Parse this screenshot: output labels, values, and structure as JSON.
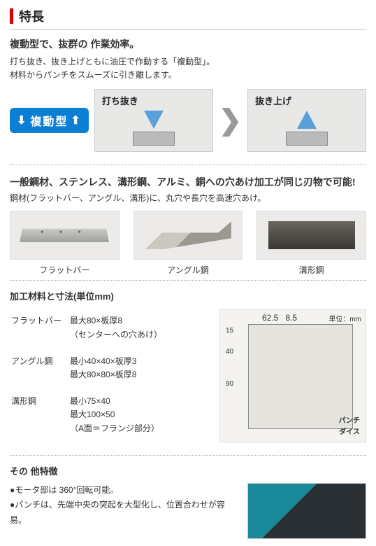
{
  "title": "特長",
  "lead": "複動型で、抜群の 作業効率。",
  "desc_line1": "打ち抜き、抜き上げともに油圧で作動する「複動型」。",
  "desc_line2": "材料からパンチをスムーズに引き離します。",
  "badge": {
    "arrow_down": "⬇",
    "text": "複動型",
    "arrow_up": "⬆"
  },
  "op1_label": "打ち抜き",
  "op2_label": "抜き上げ",
  "chevron": "❯",
  "materials_head": "一般鋼材、ステンレス、溝形鋼、アルミ、銅への穴あけ加工が同じ刃物で可能!",
  "materials_desc": "鋼材(フラットバー、アングル、溝形)に、丸穴や長穴を高速穴あけ。",
  "mats": [
    {
      "label": "フラットバー"
    },
    {
      "label": "アングル鋼"
    },
    {
      "label": "溝形鋼"
    }
  ],
  "spec_head": "加工材料と寸法(単位mm)",
  "spec_rows": [
    {
      "name": "フラットバー",
      "line1": "最大80×板厚8",
      "line2": "（センターへの穴あけ）"
    },
    {
      "name": "アングル鋼",
      "line1": "最小40×40×板厚3",
      "line2": "最大80×80×板厚8"
    },
    {
      "name": "溝形鋼",
      "line1": "最小75×40",
      "line2": "最大100×50",
      "line3": "（A面＝フランジ部分）"
    }
  ],
  "diagram": {
    "unit": "単位：mm",
    "top1": "62.5",
    "top2": "8.5",
    "d15": "15",
    "d40": "40",
    "d90": "90",
    "punch": "パンチ",
    "die": "ダイス"
  },
  "other_head": "その 他特徴",
  "other_items": [
    "●モータ部は 360°回転可能。",
    "●パンチは、先端中央の突起を大型化し、位置合わせが容易。"
  ]
}
